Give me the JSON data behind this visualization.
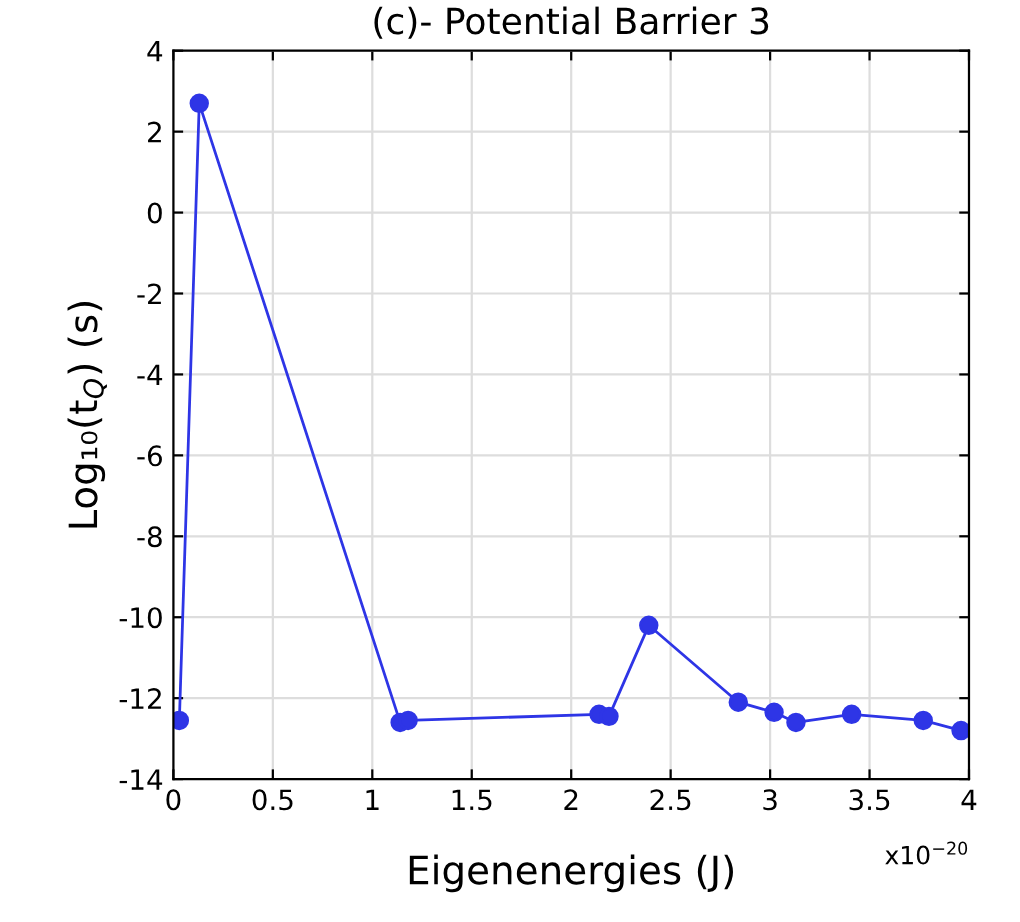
{
  "chart_data": {
    "type": "line",
    "title": "(c)- Potential Barrier 3",
    "xlabel": "Eigenenergies (J)",
    "ylabel": "Log₁₀(t$_{Q}$) (s)",
    "annotations": [
      "x10$^{−20}$"
    ],
    "x": [
      0.03,
      0.13,
      1.14,
      1.18,
      2.14,
      2.19,
      2.39,
      2.84,
      3.02,
      3.13,
      3.41,
      3.77,
      3.96
    ],
    "series": [
      {
        "color": "#2e35e6",
        "values": [
          -12.55,
          2.7,
          -12.6,
          -12.55,
          -12.4,
          -12.45,
          -10.2,
          -12.1,
          -12.35,
          -12.6,
          -12.4,
          -12.55,
          -12.8
        ]
      }
    ],
    "xlim": [
      0,
      4
    ],
    "xticks": [
      0,
      0.5,
      1,
      1.5,
      2,
      2.5,
      3,
      3.5,
      4
    ],
    "ylim": [
      -14,
      4
    ],
    "yticks": [
      -14,
      -12,
      -10,
      -8,
      -6,
      -4,
      -2,
      0,
      2,
      4
    ],
    "grid": true,
    "marker": "circle",
    "line_style": "solid"
  }
}
